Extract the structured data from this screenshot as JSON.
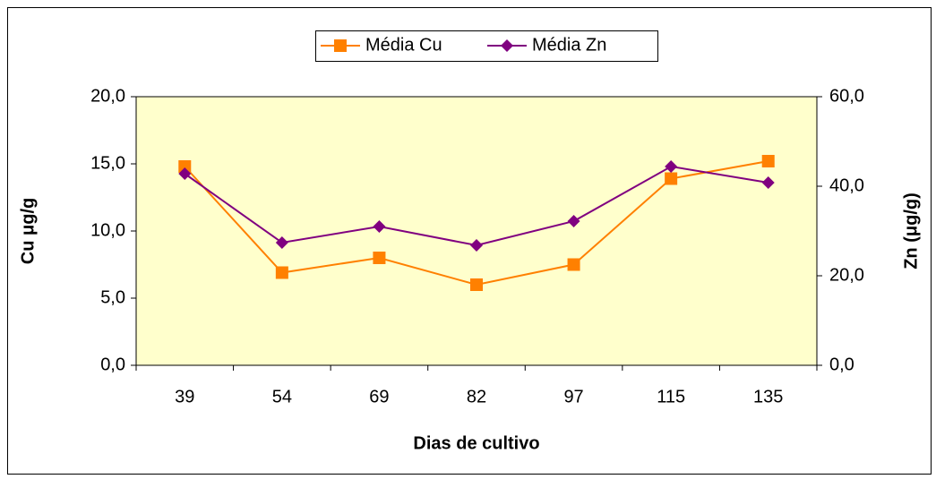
{
  "chart_data": {
    "type": "line",
    "categories": [
      "39",
      "54",
      "69",
      "82",
      "97",
      "115",
      "135"
    ],
    "series": [
      {
        "name": "Média Cu",
        "color": "#ff8000",
        "marker": "square",
        "values": [
          14.8,
          6.9,
          8.0,
          6.0,
          7.5,
          13.9,
          15.2
        ]
      },
      {
        "name": "Média Zn",
        "color": "#800080",
        "marker": "diamond",
        "axis": "y2",
        "values": [
          42.8,
          27.4,
          31.0,
          26.8,
          32.2,
          44.4,
          40.8
        ]
      }
    ],
    "xlabel": "Dias de cultivo",
    "ylabel": "Cu μg/g",
    "y2label": "Zn (μg/g)",
    "ylim": [
      0,
      20
    ],
    "yticks": [
      {
        "value": 0,
        "label": "0,0"
      },
      {
        "value": 5,
        "label": "5,0"
      },
      {
        "value": 10,
        "label": "10,0"
      },
      {
        "value": 15,
        "label": "15,0"
      },
      {
        "value": 20,
        "label": "20,0"
      }
    ],
    "y2lim": [
      0,
      60
    ],
    "y2ticks": [
      {
        "value": 0,
        "label": "0,0"
      },
      {
        "value": 20,
        "label": "20,0"
      },
      {
        "value": 40,
        "label": "40,0"
      },
      {
        "value": 60,
        "label": "60,0"
      }
    ],
    "legend": "top",
    "plot_background": "#ffffcc"
  }
}
